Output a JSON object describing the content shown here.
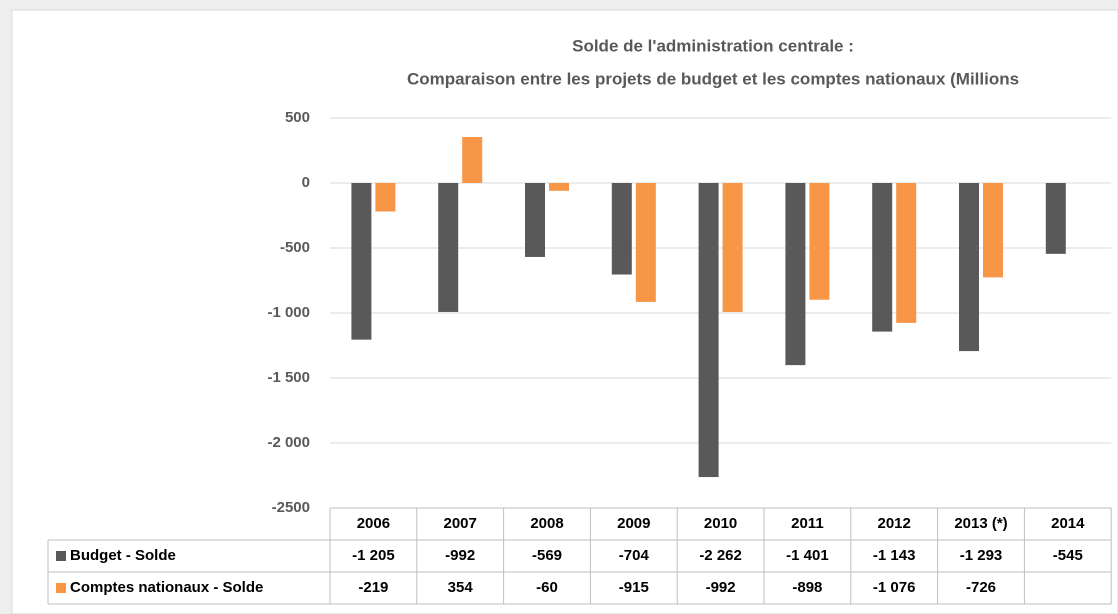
{
  "chart_data": {
    "type": "bar",
    "title": "Solde de l'administration centrale :",
    "subtitle": "Comparaison entre les projets de budget et les comptes nationaux (Millions",
    "categories": [
      "2006",
      "2007",
      "2008",
      "2009",
      "2010",
      "2011",
      "2012",
      "2013 (*)",
      "2014"
    ],
    "series": [
      {
        "name": "Budget -  Solde",
        "color": "#595959",
        "values": [
          -1205,
          -992,
          -569,
          -704,
          -2262,
          -1401,
          -1143,
          -1293,
          -545
        ],
        "value_labels": [
          "-1 205",
          "-992",
          "-569",
          "-704",
          "-2 262",
          "-1 401",
          "-1 143",
          "-1 293",
          "-545"
        ]
      },
      {
        "name": "Comptes nationaux -  Solde",
        "color": "#f79646",
        "values": [
          -219,
          354,
          -60,
          -915,
          -992,
          -898,
          -1076,
          -726,
          null
        ],
        "value_labels": [
          "-219",
          "354",
          "-60",
          "-915",
          "-992",
          "-898",
          "-1 076",
          "-726",
          null
        ]
      }
    ],
    "ylim": [
      -2500,
      500
    ],
    "yticks": [
      -2500,
      {
        "value": -2000,
        "label": "-2 000"
      },
      {
        "value": -1500,
        "label": "-1 500"
      },
      {
        "value": -1000,
        "label": "-1 000"
      },
      -500,
      0,
      500
    ],
    "grid": true
  }
}
